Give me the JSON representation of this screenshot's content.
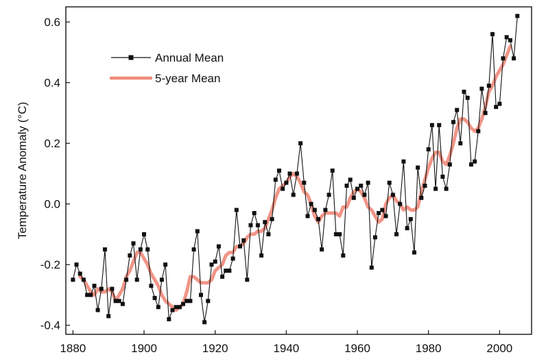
{
  "chart_data": {
    "type": "line",
    "title": "",
    "xlabel": "",
    "ylabel": "Temperature Anomaly (°C)",
    "xlim": [
      1878,
      2009
    ],
    "ylim": [
      -0.43,
      0.65
    ],
    "x_ticks": [
      1880,
      1900,
      1920,
      1940,
      1960,
      1980,
      2000
    ],
    "y_ticks": [
      -0.4,
      -0.2,
      0.0,
      0.2,
      0.4,
      0.6
    ],
    "x_tick_labels": [
      "1880",
      "1900",
      "1920",
      "1940",
      "1960",
      "1980",
      "2000"
    ],
    "y_tick_labels": [
      "-0.4",
      "-0.2",
      "0.0",
      "0.2",
      "0.4",
      "0.6"
    ],
    "grid": false,
    "legend_position": "top-left",
    "series": [
      {
        "name": "Annual Mean",
        "color": "#111111",
        "marker": "square",
        "x": [
          1880,
          1881,
          1882,
          1883,
          1884,
          1885,
          1886,
          1887,
          1888,
          1889,
          1890,
          1891,
          1892,
          1893,
          1894,
          1895,
          1896,
          1897,
          1898,
          1899,
          1900,
          1901,
          1902,
          1903,
          1904,
          1905,
          1906,
          1907,
          1908,
          1909,
          1910,
          1911,
          1912,
          1913,
          1914,
          1915,
          1916,
          1917,
          1918,
          1919,
          1920,
          1921,
          1922,
          1923,
          1924,
          1925,
          1926,
          1927,
          1928,
          1929,
          1930,
          1931,
          1932,
          1933,
          1934,
          1935,
          1936,
          1937,
          1938,
          1939,
          1940,
          1941,
          1942,
          1943,
          1944,
          1945,
          1946,
          1947,
          1948,
          1949,
          1950,
          1951,
          1952,
          1953,
          1954,
          1955,
          1956,
          1957,
          1958,
          1959,
          1960,
          1961,
          1962,
          1963,
          1964,
          1965,
          1966,
          1967,
          1968,
          1969,
          1970,
          1971,
          1972,
          1973,
          1974,
          1975,
          1976,
          1977,
          1978,
          1979,
          1980,
          1981,
          1982,
          1983,
          1984,
          1985,
          1986,
          1987,
          1988,
          1989,
          1990,
          1991,
          1992,
          1993,
          1994,
          1995,
          1996,
          1997,
          1998,
          1999,
          2000,
          2001,
          2002,
          2003,
          2004,
          2005
        ],
        "values": [
          -0.25,
          -0.2,
          -0.23,
          -0.25,
          -0.3,
          -0.3,
          -0.27,
          -0.35,
          -0.28,
          -0.15,
          -0.37,
          -0.28,
          -0.32,
          -0.32,
          -0.33,
          -0.25,
          -0.17,
          -0.13,
          -0.25,
          -0.15,
          -0.1,
          -0.15,
          -0.27,
          -0.31,
          -0.34,
          -0.25,
          -0.2,
          -0.38,
          -0.35,
          -0.34,
          -0.34,
          -0.33,
          -0.32,
          -0.32,
          -0.15,
          -0.09,
          -0.3,
          -0.39,
          -0.32,
          -0.2,
          -0.19,
          -0.14,
          -0.24,
          -0.22,
          -0.22,
          -0.18,
          -0.02,
          -0.14,
          -0.12,
          -0.25,
          -0.07,
          -0.03,
          -0.07,
          -0.17,
          -0.06,
          -0.1,
          -0.05,
          0.08,
          0.11,
          0.05,
          0.07,
          0.1,
          0.03,
          0.1,
          0.2,
          0.07,
          -0.04,
          0.0,
          -0.02,
          -0.05,
          -0.15,
          -0.02,
          0.03,
          0.11,
          -0.1,
          -0.1,
          -0.17,
          0.06,
          0.08,
          0.02,
          0.05,
          0.06,
          0.03,
          0.07,
          -0.21,
          -0.11,
          -0.03,
          -0.02,
          -0.04,
          0.07,
          0.03,
          -0.1,
          0.0,
          0.14,
          -0.08,
          -0.05,
          -0.16,
          0.12,
          0.02,
          0.06,
          0.18,
          0.26,
          0.05,
          0.26,
          0.09,
          0.05,
          0.13,
          0.27,
          0.31,
          0.2,
          0.37,
          0.35,
          0.13,
          0.14,
          0.24,
          0.38,
          0.3,
          0.39,
          0.56,
          0.32,
          0.33,
          0.48,
          0.55,
          0.54,
          0.48,
          0.62
        ]
      },
      {
        "name": "5-year Mean",
        "color": "#f08a7a",
        "marker": "none",
        "x": [
          1882,
          1883,
          1884,
          1885,
          1886,
          1887,
          1888,
          1889,
          1890,
          1891,
          1892,
          1893,
          1894,
          1895,
          1896,
          1897,
          1898,
          1899,
          1900,
          1901,
          1902,
          1903,
          1904,
          1905,
          1906,
          1907,
          1908,
          1909,
          1910,
          1911,
          1912,
          1913,
          1914,
          1915,
          1916,
          1917,
          1918,
          1919,
          1920,
          1921,
          1922,
          1923,
          1924,
          1925,
          1926,
          1927,
          1928,
          1929,
          1930,
          1931,
          1932,
          1933,
          1934,
          1935,
          1936,
          1937,
          1938,
          1939,
          1940,
          1941,
          1942,
          1943,
          1944,
          1945,
          1946,
          1947,
          1948,
          1949,
          1950,
          1951,
          1952,
          1953,
          1954,
          1955,
          1956,
          1957,
          1958,
          1959,
          1960,
          1961,
          1962,
          1963,
          1964,
          1965,
          1966,
          1967,
          1968,
          1969,
          1970,
          1971,
          1972,
          1973,
          1974,
          1975,
          1976,
          1977,
          1978,
          1979,
          1980,
          1981,
          1982,
          1983,
          1984,
          1985,
          1986,
          1987,
          1988,
          1989,
          1990,
          1991,
          1992,
          1993,
          1994,
          1995,
          1996,
          1997,
          1998,
          1999,
          2000,
          2001,
          2002,
          2003
        ],
        "values": [
          -0.24,
          -0.25,
          -0.27,
          -0.29,
          -0.3,
          -0.28,
          -0.29,
          -0.29,
          -0.28,
          -0.29,
          -0.32,
          -0.3,
          -0.28,
          -0.24,
          -0.22,
          -0.19,
          -0.16,
          -0.16,
          -0.18,
          -0.2,
          -0.23,
          -0.25,
          -0.27,
          -0.3,
          -0.32,
          -0.33,
          -0.34,
          -0.35,
          -0.34,
          -0.33,
          -0.29,
          -0.24,
          -0.24,
          -0.25,
          -0.26,
          -0.26,
          -0.26,
          -0.25,
          -0.22,
          -0.21,
          -0.2,
          -0.17,
          -0.16,
          -0.16,
          -0.14,
          -0.14,
          -0.13,
          -0.11,
          -0.1,
          -0.1,
          -0.09,
          -0.09,
          -0.08,
          -0.05,
          -0.02,
          0.02,
          0.05,
          0.06,
          0.07,
          0.09,
          0.1,
          0.09,
          0.07,
          0.04,
          0.03,
          0.0,
          -0.04,
          -0.06,
          -0.04,
          -0.03,
          -0.03,
          -0.03,
          -0.03,
          -0.04,
          -0.01,
          -0.01,
          0.02,
          0.04,
          0.05,
          0.04,
          0.02,
          -0.01,
          -0.02,
          -0.04,
          -0.06,
          -0.05,
          0.0,
          0.02,
          0.03,
          0.01,
          0.0,
          -0.02,
          -0.01,
          -0.02,
          -0.02,
          -0.01,
          0.04,
          0.08,
          0.12,
          0.15,
          0.17,
          0.17,
          0.14,
          0.13,
          0.16,
          0.2,
          0.25,
          0.28,
          0.28,
          0.27,
          0.25,
          0.24,
          0.25,
          0.28,
          0.32,
          0.37,
          0.39,
          0.42,
          0.44,
          0.46,
          0.49,
          0.52
        ]
      }
    ]
  }
}
